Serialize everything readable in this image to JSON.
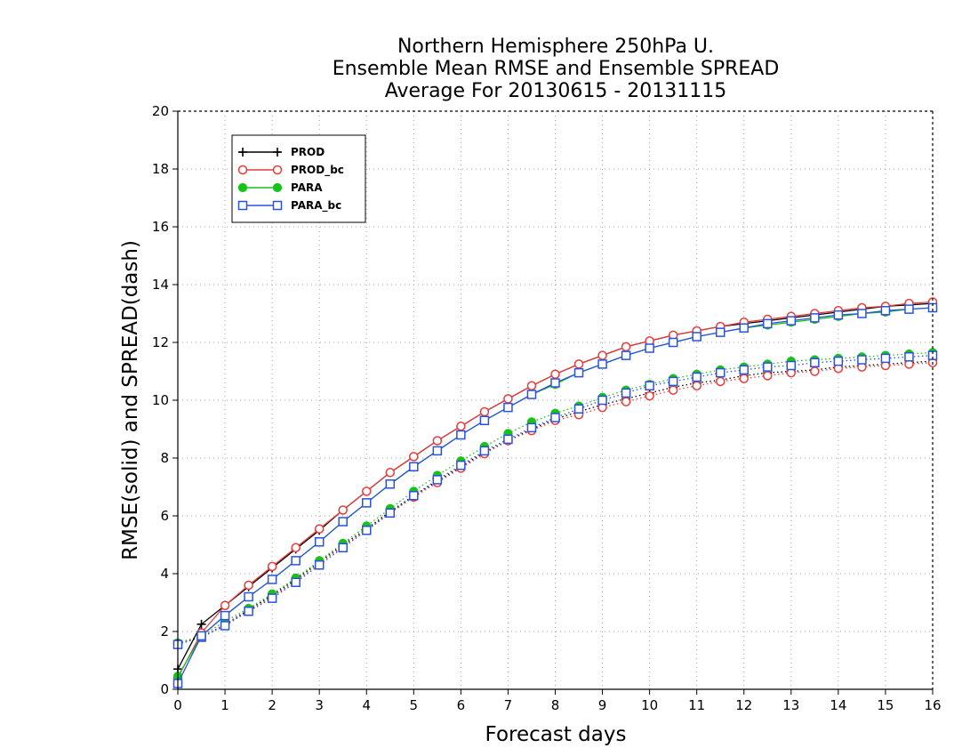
{
  "chart_data": {
    "type": "line",
    "title_lines": [
      "Northern Hemisphere 250hPa U.",
      "Ensemble Mean RMSE and Ensemble SPREAD",
      "Average For 20130615 - 20131115"
    ],
    "xlabel": "Forecast days",
    "ylabel": "RMSE(solid) and SPREAD(dash)",
    "xlim": [
      0,
      16
    ],
    "ylim": [
      0,
      20
    ],
    "xticks": [
      "0",
      "1",
      "2",
      "3",
      "4",
      "5",
      "6",
      "7",
      "8",
      "9",
      "10",
      "11",
      "12",
      "13",
      "14",
      "15",
      "16"
    ],
    "yticks": [
      "0",
      "2",
      "4",
      "6",
      "8",
      "10",
      "12",
      "14",
      "16",
      "18",
      "20"
    ],
    "grid": true,
    "legend_position": "top-left",
    "x": [
      0,
      0.5,
      1,
      1.5,
      2,
      2.5,
      3,
      3.5,
      4,
      4.5,
      5,
      5.5,
      6,
      6.5,
      7,
      7.5,
      8,
      8.5,
      9,
      9.5,
      10,
      10.5,
      11,
      11.5,
      12,
      12.5,
      13,
      13.5,
      14,
      14.5,
      15,
      15.5,
      16
    ],
    "series": [
      {
        "name": "PROD",
        "color": "#000000",
        "marker": "plus",
        "rmse": [
          0.7,
          2.25,
          2.9,
          3.55,
          4.2,
          4.85,
          5.5,
          6.2,
          6.85,
          7.5,
          8.05,
          8.6,
          9.1,
          9.6,
          10.05,
          10.5,
          10.9,
          11.25,
          11.55,
          11.85,
          12.05,
          12.25,
          12.4,
          12.55,
          12.65,
          12.75,
          12.85,
          12.95,
          13.05,
          13.15,
          13.25,
          13.3,
          13.35
        ],
        "spread": [
          1.6,
          1.8,
          2.25,
          2.75,
          3.25,
          3.8,
          4.4,
          5.0,
          5.55,
          6.15,
          6.7,
          7.2,
          7.7,
          8.2,
          8.6,
          9.0,
          9.35,
          9.6,
          9.85,
          10.05,
          10.25,
          10.45,
          10.6,
          10.7,
          10.85,
          10.95,
          11.0,
          11.05,
          11.15,
          11.2,
          11.25,
          11.3,
          11.35
        ]
      },
      {
        "name": "PROD_bc",
        "color": "#e83c3c",
        "marker": "circle-open",
        "rmse": [
          0.4,
          1.95,
          2.9,
          3.6,
          4.25,
          4.9,
          5.55,
          6.2,
          6.85,
          7.5,
          8.05,
          8.6,
          9.1,
          9.6,
          10.05,
          10.5,
          10.9,
          11.25,
          11.55,
          11.85,
          12.05,
          12.25,
          12.4,
          12.55,
          12.7,
          12.8,
          12.9,
          13.0,
          13.1,
          13.2,
          13.25,
          13.35,
          13.4
        ],
        "spread": [
          1.6,
          1.8,
          2.25,
          2.7,
          3.2,
          3.75,
          4.35,
          4.95,
          5.5,
          6.1,
          6.65,
          7.15,
          7.65,
          8.15,
          8.6,
          8.95,
          9.3,
          9.5,
          9.75,
          9.95,
          10.15,
          10.35,
          10.5,
          10.65,
          10.75,
          10.85,
          10.95,
          11.0,
          11.1,
          11.15,
          11.2,
          11.25,
          11.3
        ]
      },
      {
        "name": "PARA",
        "color": "#16c316",
        "marker": "circle-filled",
        "rmse": [
          0.45,
          1.85,
          2.55,
          3.2,
          3.8,
          4.45,
          5.1,
          5.8,
          6.45,
          7.1,
          7.7,
          8.25,
          8.8,
          9.3,
          9.75,
          10.2,
          10.55,
          10.95,
          11.25,
          11.55,
          11.8,
          12.0,
          12.2,
          12.35,
          12.5,
          12.6,
          12.7,
          12.8,
          12.9,
          13.0,
          13.05,
          13.15,
          13.2
        ],
        "spread": [
          1.6,
          1.85,
          2.35,
          2.8,
          3.3,
          3.85,
          4.45,
          5.05,
          5.65,
          6.25,
          6.85,
          7.4,
          7.9,
          8.4,
          8.85,
          9.25,
          9.55,
          9.8,
          10.1,
          10.35,
          10.55,
          10.75,
          10.9,
          11.05,
          11.15,
          11.25,
          11.35,
          11.4,
          11.45,
          11.5,
          11.55,
          11.6,
          11.65
        ]
      },
      {
        "name": "PARA_bc",
        "color": "#2a52e0",
        "marker": "square-open",
        "rmse": [
          0.2,
          1.85,
          2.55,
          3.2,
          3.8,
          4.45,
          5.1,
          5.8,
          6.45,
          7.1,
          7.7,
          8.25,
          8.8,
          9.3,
          9.75,
          10.2,
          10.6,
          10.95,
          11.25,
          11.55,
          11.8,
          12.0,
          12.2,
          12.35,
          12.5,
          12.65,
          12.75,
          12.85,
          12.95,
          13.0,
          13.1,
          13.15,
          13.2
        ],
        "spread": [
          1.55,
          1.8,
          2.2,
          2.7,
          3.15,
          3.7,
          4.3,
          4.9,
          5.5,
          6.1,
          6.7,
          7.25,
          7.75,
          8.25,
          8.65,
          9.05,
          9.4,
          9.7,
          10.0,
          10.25,
          10.5,
          10.65,
          10.8,
          10.95,
          11.05,
          11.15,
          11.2,
          11.3,
          11.35,
          11.4,
          11.45,
          11.5,
          11.55
        ]
      }
    ]
  }
}
